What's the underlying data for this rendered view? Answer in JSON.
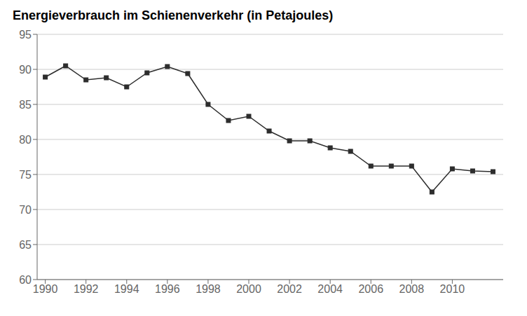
{
  "chart_data": {
    "type": "line",
    "title": "Energieverbrauch im Schienenverkehr (in Petajoules)",
    "x": [
      1990,
      1991,
      1992,
      1993,
      1994,
      1995,
      1996,
      1997,
      1998,
      1999,
      2000,
      2001,
      2002,
      2003,
      2004,
      2005,
      2006,
      2007,
      2008,
      2009,
      2010,
      2011,
      2012
    ],
    "values": [
      88.9,
      90.5,
      88.5,
      88.8,
      87.5,
      89.5,
      90.4,
      89.4,
      85.0,
      82.7,
      83.3,
      81.2,
      79.8,
      79.8,
      78.8,
      78.3,
      76.2,
      76.2,
      76.2,
      72.5,
      75.8,
      75.5,
      75.4
    ],
    "xlim": [
      1989.6,
      2012.5
    ],
    "xticks": [
      1990,
      1992,
      1994,
      1996,
      1998,
      2000,
      2002,
      2004,
      2006,
      2008,
      2010
    ],
    "ylim": [
      60,
      95
    ],
    "yticks": [
      60,
      65,
      70,
      75,
      80,
      85,
      90,
      95
    ],
    "grid": true,
    "color": "#2d2d2d",
    "marker": "square"
  }
}
